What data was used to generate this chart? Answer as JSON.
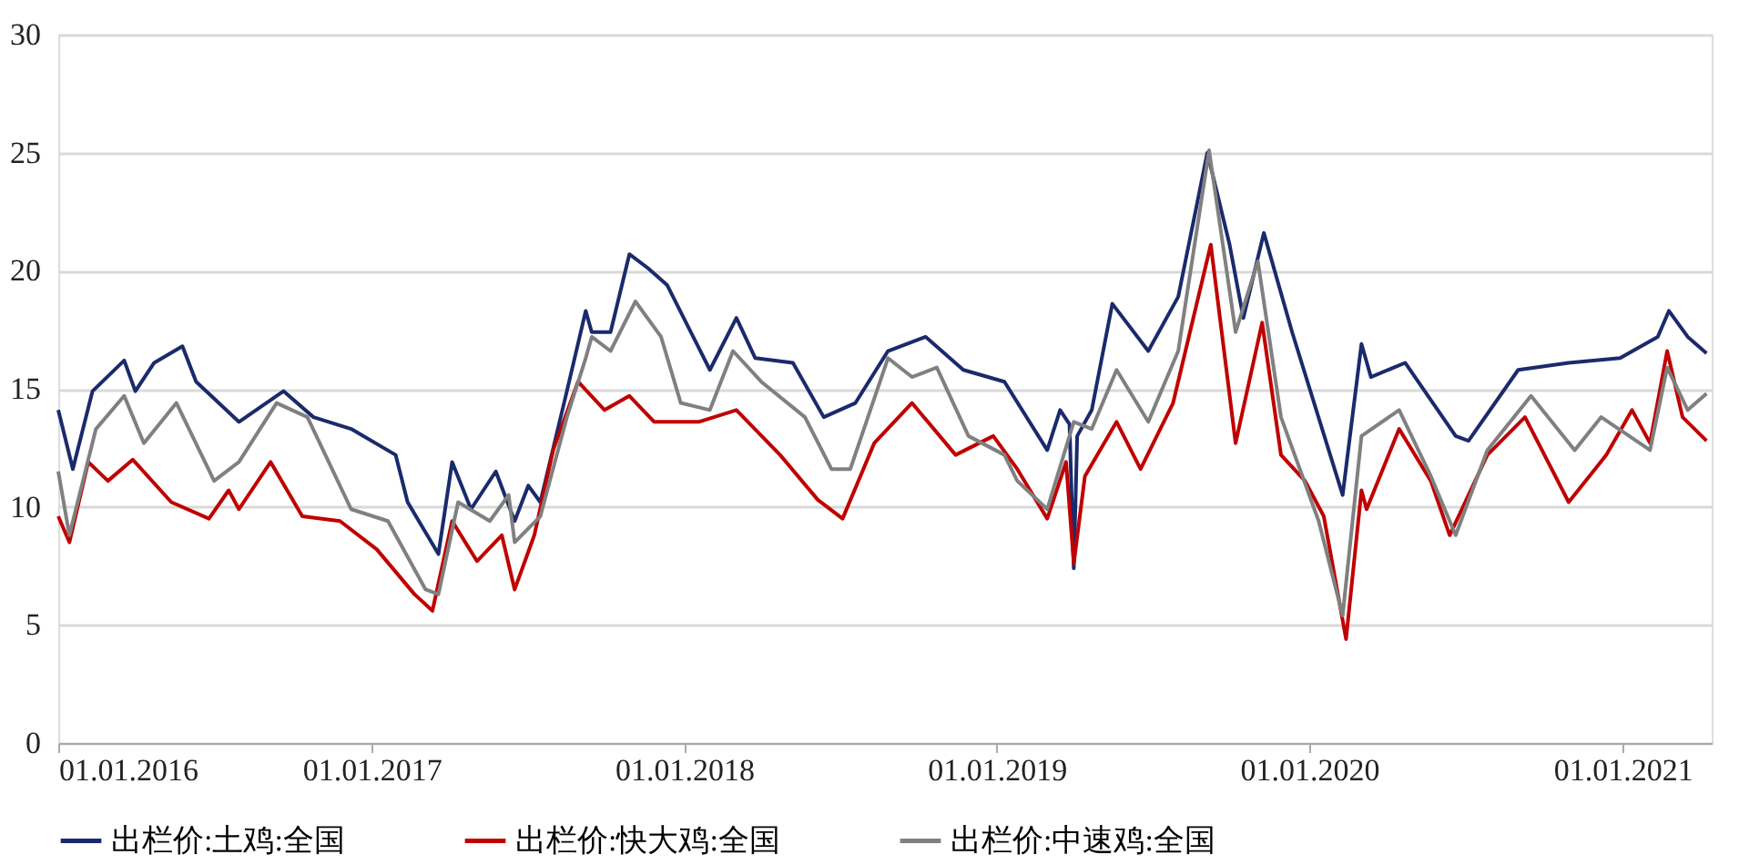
{
  "chart_data": {
    "type": "line",
    "xlim": [
      "2016-01-01",
      "2021-04-15"
    ],
    "ylim": [
      0,
      30
    ],
    "yticks": [
      0,
      5,
      10,
      15,
      20,
      25,
      30
    ],
    "xticks": [
      {
        "value": "2016-01-01",
        "label": "01.01.2016"
      },
      {
        "value": "2017-01-01",
        "label": "01.01.2017"
      },
      {
        "value": "2018-01-01",
        "label": "01.01.2018"
      },
      {
        "value": "2019-01-01",
        "label": "01.01.2019"
      },
      {
        "value": "2020-01-01",
        "label": "01.01.2020"
      },
      {
        "value": "2021-01-01",
        "label": "01.01.2021"
      }
    ],
    "grid": "y",
    "legend": "bottom",
    "marker": "none",
    "line_style": "solid",
    "series": [
      {
        "name": "出栏价:土鸡:全国",
        "color": "#1a2a6c",
        "x": [
          "2016-01-01",
          "2016-01-18",
          "2016-02-10",
          "2016-03-18",
          "2016-03-31",
          "2016-04-22",
          "2016-05-25",
          "2016-06-10",
          "2016-07-30",
          "2016-09-20",
          "2016-10-25",
          "2016-12-08",
          "2017-01-29",
          "2017-02-12",
          "2017-03-20",
          "2017-04-05",
          "2017-04-27",
          "2017-05-26",
          "2017-06-17",
          "2017-07-03",
          "2017-07-17",
          "2017-08-17",
          "2017-09-08",
          "2017-09-15",
          "2017-10-07",
          "2017-10-29",
          "2017-11-20",
          "2017-12-12",
          "2018-01-31",
          "2018-03-03",
          "2018-03-25",
          "2018-05-08",
          "2018-06-13",
          "2018-07-20",
          "2018-08-27",
          "2018-10-10",
          "2018-11-23",
          "2019-01-10",
          "2019-03-01",
          "2019-03-16",
          "2019-03-27",
          "2019-04-01",
          "2019-04-05",
          "2019-04-22",
          "2019-05-16",
          "2019-06-27",
          "2019-08-01",
          "2019-09-04",
          "2019-09-30",
          "2019-10-16",
          "2019-11-09",
          "2019-12-12",
          "2020-02-09",
          "2020-03-02",
          "2020-03-13",
          "2020-04-22",
          "2020-06-20",
          "2020-07-05",
          "2020-09-01",
          "2020-10-30",
          "2020-12-29",
          "2021-02-11",
          "2021-02-24",
          "2021-03-18",
          "2021-04-09"
        ],
        "values": [
          14.1,
          11.6,
          14.9,
          16.2,
          14.9,
          16.1,
          16.8,
          15.3,
          13.6,
          14.9,
          13.8,
          13.3,
          12.2,
          10.2,
          8.0,
          11.9,
          9.9,
          11.5,
          9.4,
          10.9,
          10.2,
          14.9,
          18.3,
          17.4,
          17.4,
          20.7,
          20.1,
          19.4,
          15.8,
          18.0,
          16.3,
          16.1,
          13.8,
          14.4,
          16.6,
          17.2,
          15.8,
          15.3,
          12.4,
          14.1,
          13.5,
          7.4,
          13.0,
          14.1,
          18.6,
          16.6,
          18.9,
          25.0,
          21.1,
          18.0,
          21.6,
          17.4,
          10.5,
          16.9,
          15.5,
          16.1,
          13.0,
          12.8,
          15.8,
          16.1,
          16.3,
          17.2,
          18.3,
          17.2,
          16.5
        ]
      },
      {
        "name": "出栏价:快大鸡:全国",
        "color": "#c00000",
        "x": [
          "2016-01-01",
          "2016-01-14",
          "2016-02-05",
          "2016-02-28",
          "2016-03-28",
          "2016-05-12",
          "2016-06-25",
          "2016-07-18",
          "2016-07-30",
          "2016-09-05",
          "2016-10-12",
          "2016-11-25",
          "2017-01-07",
          "2017-02-20",
          "2017-03-13",
          "2017-04-05",
          "2017-05-04",
          "2017-06-02",
          "2017-06-17",
          "2017-07-10",
          "2017-08-01",
          "2017-08-30",
          "2017-09-30",
          "2017-10-29",
          "2017-11-27",
          "2018-01-18",
          "2018-03-03",
          "2018-04-23",
          "2018-06-06",
          "2018-07-05",
          "2018-08-11",
          "2018-09-24",
          "2018-11-14",
          "2018-12-28",
          "2019-01-25",
          "2019-03-01",
          "2019-03-23",
          "2019-04-01",
          "2019-04-14",
          "2019-05-21",
          "2019-06-18",
          "2019-07-26",
          "2019-09-08",
          "2019-10-07",
          "2019-11-07",
          "2019-11-29",
          "2019-12-27",
          "2020-01-18",
          "2020-02-13",
          "2020-03-02",
          "2020-03-08",
          "2020-04-15",
          "2020-05-22",
          "2020-06-13",
          "2020-07-27",
          "2020-09-09",
          "2020-10-30",
          "2020-12-13",
          "2021-01-12",
          "2021-02-02",
          "2021-02-22",
          "2021-03-12",
          "2021-04-09"
        ],
        "values": [
          9.6,
          8.5,
          11.9,
          11.1,
          12.0,
          10.2,
          9.5,
          10.7,
          9.9,
          11.9,
          9.6,
          9.4,
          8.2,
          6.3,
          5.6,
          9.4,
          7.7,
          8.8,
          6.5,
          8.8,
          12.4,
          15.3,
          14.1,
          14.7,
          13.6,
          13.6,
          14.1,
          12.2,
          10.3,
          9.5,
          12.7,
          14.4,
          12.2,
          13.0,
          11.6,
          9.5,
          11.9,
          7.6,
          11.3,
          13.6,
          11.6,
          14.4,
          21.1,
          12.7,
          17.8,
          12.2,
          11.1,
          9.6,
          4.4,
          10.7,
          9.9,
          13.3,
          11.1,
          8.8,
          12.2,
          13.8,
          10.2,
          12.2,
          14.1,
          12.7,
          16.6,
          13.8,
          12.8
        ]
      },
      {
        "name": "出栏价:中速鸡:全国",
        "color": "#808080",
        "x": [
          "2016-01-01",
          "2016-01-14",
          "2016-02-14",
          "2016-03-18",
          "2016-04-10",
          "2016-05-18",
          "2016-07-01",
          "2016-07-30",
          "2016-09-12",
          "2016-10-18",
          "2016-12-08",
          "2017-01-20",
          "2017-03-05",
          "2017-03-20",
          "2017-04-12",
          "2017-05-19",
          "2017-06-10",
          "2017-06-17",
          "2017-07-17",
          "2017-08-17",
          "2017-09-08",
          "2017-09-15",
          "2017-10-07",
          "2017-11-05",
          "2017-12-05",
          "2017-12-28",
          "2018-01-31",
          "2018-02-27",
          "2018-04-01",
          "2018-05-22",
          "2018-06-22",
          "2018-07-14",
          "2018-08-27",
          "2018-09-24",
          "2018-10-23",
          "2018-11-29",
          "2019-01-10",
          "2019-01-25",
          "2019-03-01",
          "2019-04-01",
          "2019-04-22",
          "2019-05-21",
          "2019-06-27",
          "2019-08-01",
          "2019-09-06",
          "2019-10-07",
          "2019-11-02",
          "2019-11-29",
          "2020-01-12",
          "2020-02-09",
          "2020-03-02",
          "2020-04-15",
          "2020-05-22",
          "2020-06-20",
          "2020-07-27",
          "2020-09-16",
          "2020-11-06",
          "2020-12-07",
          "2021-02-02",
          "2021-02-22",
          "2021-03-18",
          "2021-04-09"
        ],
        "values": [
          11.5,
          8.8,
          13.3,
          14.7,
          12.7,
          14.4,
          11.1,
          11.9,
          14.4,
          13.8,
          9.9,
          9.4,
          6.5,
          6.3,
          10.2,
          9.4,
          10.5,
          8.5,
          9.6,
          13.8,
          16.3,
          17.2,
          16.6,
          18.7,
          17.2,
          14.4,
          14.1,
          16.6,
          15.3,
          13.8,
          11.6,
          11.6,
          16.3,
          15.5,
          15.9,
          13.0,
          12.2,
          11.1,
          9.9,
          13.6,
          13.3,
          15.8,
          13.6,
          16.6,
          25.1,
          17.4,
          20.4,
          13.8,
          9.4,
          5.4,
          13.0,
          14.1,
          11.3,
          8.8,
          12.4,
          14.7,
          12.4,
          13.8,
          12.4,
          15.9,
          14.1,
          14.8
        ]
      }
    ]
  }
}
